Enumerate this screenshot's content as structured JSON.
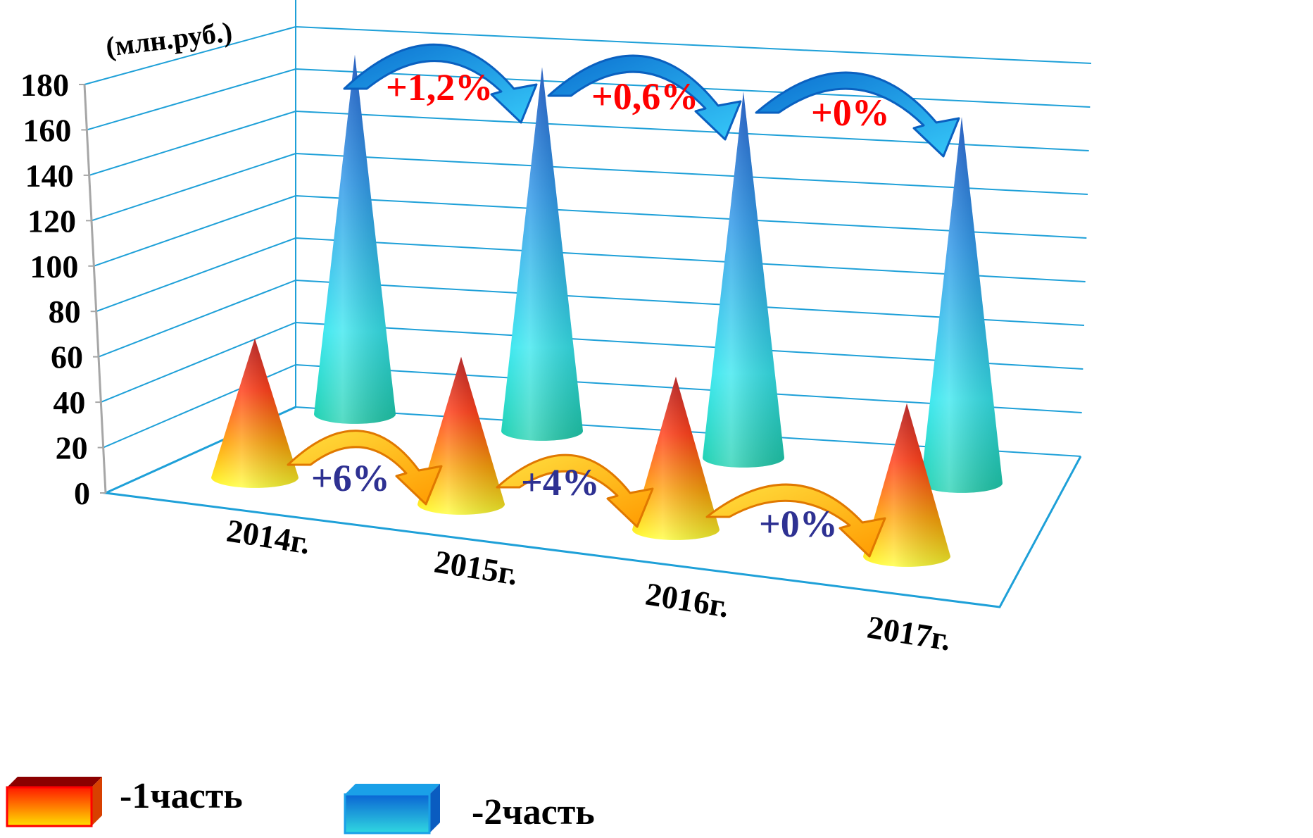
{
  "chart_data": {
    "type": "bar",
    "style": "3d-cone",
    "unit_label": "(млн.руб.)",
    "categories": [
      "2014г.",
      "2015г.",
      "2016г.",
      "2017г."
    ],
    "yticks": [
      "0",
      "20",
      "40",
      "60",
      "80",
      "100",
      "120",
      "140",
      "160",
      "180"
    ],
    "ylim": [
      0,
      180
    ],
    "grid": true,
    "series": [
      {
        "name": "-1часть",
        "values": [
          50,
          53,
          55,
          55
        ],
        "color_top": "#c00000",
        "color_mid": "#ff6a00",
        "color_base": "#ffff33",
        "growth_labels": [
          "+6%",
          "+4%",
          "+0%"
        ]
      },
      {
        "name": "-2часть",
        "values": [
          162,
          164,
          165,
          165
        ],
        "color_top": "#0050c8",
        "color_mid": "#1ea0e6",
        "color_base": "#28e0c8",
        "growth_labels": [
          "+1,2%",
          "+0,6%",
          "+0%"
        ]
      }
    ],
    "legend_position": "bottom-left"
  },
  "colors": {
    "grid": "#1ea0d8",
    "axis": "#a6a6a6",
    "arrow_blue": "#1a8ee0",
    "arrow_orange": "#ffa500"
  }
}
